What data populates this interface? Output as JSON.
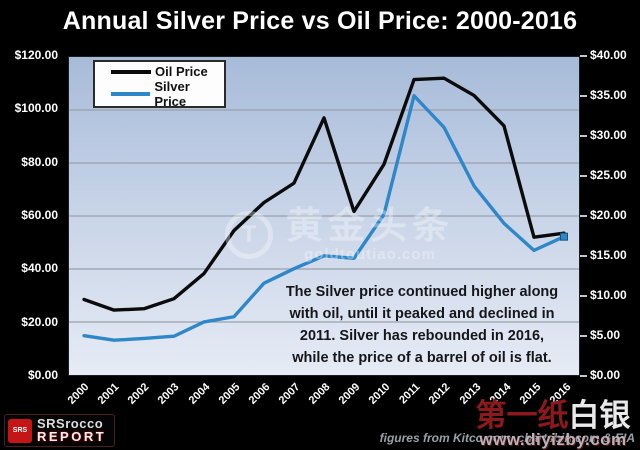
{
  "title": "Annual Silver Price vs Oil Price: 2000-2016",
  "annotation": {
    "text": "The Silver price continued higher along\nwith oil, until it peaked and declined in\n2011.  Silver has rebounded in 2016,\nwhile the price of a barrel of oil is flat."
  },
  "watermark": {
    "logo_letter": "T",
    "name": "黄金头条",
    "url": "goldtoutiao.com"
  },
  "footer": {
    "source_caption": "figures from Kitco.com, chartsbin.com & EIA",
    "srsrocco": {
      "icon_text": "SRS",
      "line1": "SRSrocco",
      "line2": "REPORT"
    },
    "diyizby": {
      "name_red": "第一纸",
      "name_white": "白银",
      "url": "www.diyizby.com"
    }
  },
  "chart_data": {
    "type": "line",
    "title": "Annual Silver Price vs Oil Price: 2000-2016",
    "categories": [
      "2000",
      "2001",
      "2002",
      "2003",
      "2004",
      "2005",
      "2006",
      "2007",
      "2008",
      "2009",
      "2010",
      "2011",
      "2012",
      "2013",
      "2014",
      "2015",
      "2016"
    ],
    "series": [
      {
        "name": "Oil Price",
        "axis": "left",
        "color": "#0b0b0b",
        "values": [
          28.5,
          24.5,
          25.0,
          28.8,
          38.3,
          54.5,
          65.1,
          72.4,
          97.0,
          61.7,
          79.5,
          111.5,
          112.0,
          105.5,
          94.0,
          52.0,
          53.5
        ]
      },
      {
        "name": "Silver Price",
        "axis": "right",
        "color": "#2e87c8",
        "end_marker": true,
        "values": [
          4.95,
          4.37,
          4.6,
          4.88,
          6.67,
          7.32,
          11.55,
          13.38,
          14.99,
          14.67,
          20.19,
          35.12,
          31.15,
          23.79,
          19.08,
          15.68,
          17.4
        ]
      }
    ],
    "left_axis": {
      "min": 0,
      "max": 120,
      "tick_labels": [
        "$120.00",
        "$100.00",
        "$80.00",
        "$60.00",
        "$40.00",
        "$20.00",
        "$0.00"
      ]
    },
    "right_axis": {
      "min": 0,
      "max": 40,
      "tick_labels": [
        "$40.00",
        "$35.00",
        "$30.00",
        "$25.00",
        "$20.00",
        "$15.00",
        "$10.00",
        "$5.00",
        "$0.00"
      ]
    },
    "gridline_values": [
      100,
      80,
      60,
      40,
      20
    ],
    "grid": true,
    "legend_position": "top-left",
    "gridline_color": "#98a0ab"
  }
}
